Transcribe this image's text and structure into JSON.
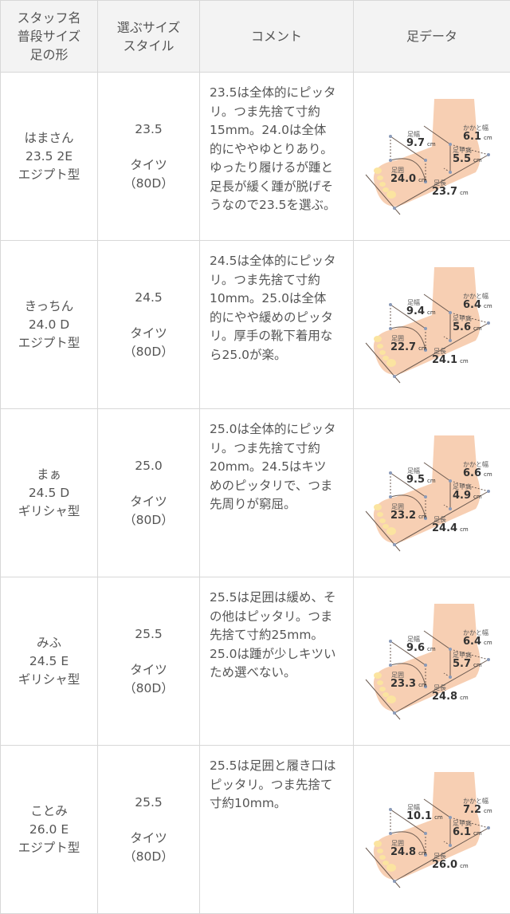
{
  "header": {
    "col1": [
      "スタッフ名",
      "普段サイズ",
      "足の形"
    ],
    "col2": [
      "選ぶサイズ",
      "スタイル"
    ],
    "col3": "コメント",
    "col4": "足データ"
  },
  "foot_labels": {
    "width": "足幅",
    "heel": "かかと幅",
    "instep": "足甲高",
    "girth": "足囲",
    "length": "足長",
    "unit": "cm"
  },
  "rows": [
    {
      "name": "はまさん",
      "usual": "23.5 2E",
      "shape": "エジプト型",
      "size": "23.5",
      "style": [
        "タイツ",
        "（80D）"
      ],
      "comment": [
        "23.5は全体的にピッタ",
        "リ。つま先捨て寸約",
        "15mm。24.0は全体",
        "的にややゆとりあり。",
        "ゆったり履けるが踵と",
        "足長が緩く踵が脱げそ",
        "うなので23.5を選ぶ。"
      ],
      "foot": {
        "width": "9.7",
        "heel": "6.1",
        "instep": "5.5",
        "girth": "24.0",
        "length": "23.7"
      }
    },
    {
      "name": "きっちん",
      "usual": "24.0 D",
      "shape": "エジプト型",
      "size": "24.5",
      "style": [
        "タイツ",
        "（80D）"
      ],
      "comment": [
        "24.5は全体的にピッタ",
        "リ。つま先捨て寸約",
        "10mm。25.0は全体",
        "的にやや緩めのピッタ",
        "リ。厚手の靴下着用な",
        "ら25.0が楽。"
      ],
      "foot": {
        "width": "9.4",
        "heel": "6.4",
        "instep": "5.6",
        "girth": "22.7",
        "length": "24.1"
      }
    },
    {
      "name": "まぁ",
      "usual": "24.5 D",
      "shape": "ギリシャ型",
      "size": "25.0",
      "style": [
        "タイツ",
        "（80D）"
      ],
      "comment": [
        "25.0は全体的にピッタ",
        "リ。つま先捨て寸約",
        "20mm。24.5はキツ",
        "めのピッタリで、つま",
        "先周りが窮屈。"
      ],
      "foot": {
        "width": "9.5",
        "heel": "6.6",
        "instep": "4.9",
        "girth": "23.2",
        "length": "24.4"
      }
    },
    {
      "name": "みふ",
      "usual": "24.5 E",
      "shape": "ギリシャ型",
      "size": "25.5",
      "style": [
        "タイツ",
        "（80D）"
      ],
      "comment": [
        "25.5は足囲は緩め、そ",
        "の他はピッタリ。つま",
        "先捨て寸約25mm。",
        "25.0は踵が少しキツい",
        "ため選べない。"
      ],
      "foot": {
        "width": "9.6",
        "heel": "6.4",
        "instep": "5.7",
        "girth": "23.3",
        "length": "24.8"
      }
    },
    {
      "name": "ことみ",
      "usual": "26.0 E",
      "shape": "エジプト型",
      "size": "25.5",
      "style": [
        "タイツ",
        "（80D）"
      ],
      "comment": [
        "25.5は足囲と履き口は",
        "ピッタリ。つま先捨て",
        "寸約10mm。"
      ],
      "foot": {
        "width": "10.1",
        "heel": "7.2",
        "instep": "6.1",
        "girth": "24.8",
        "length": "26.0"
      }
    }
  ]
}
